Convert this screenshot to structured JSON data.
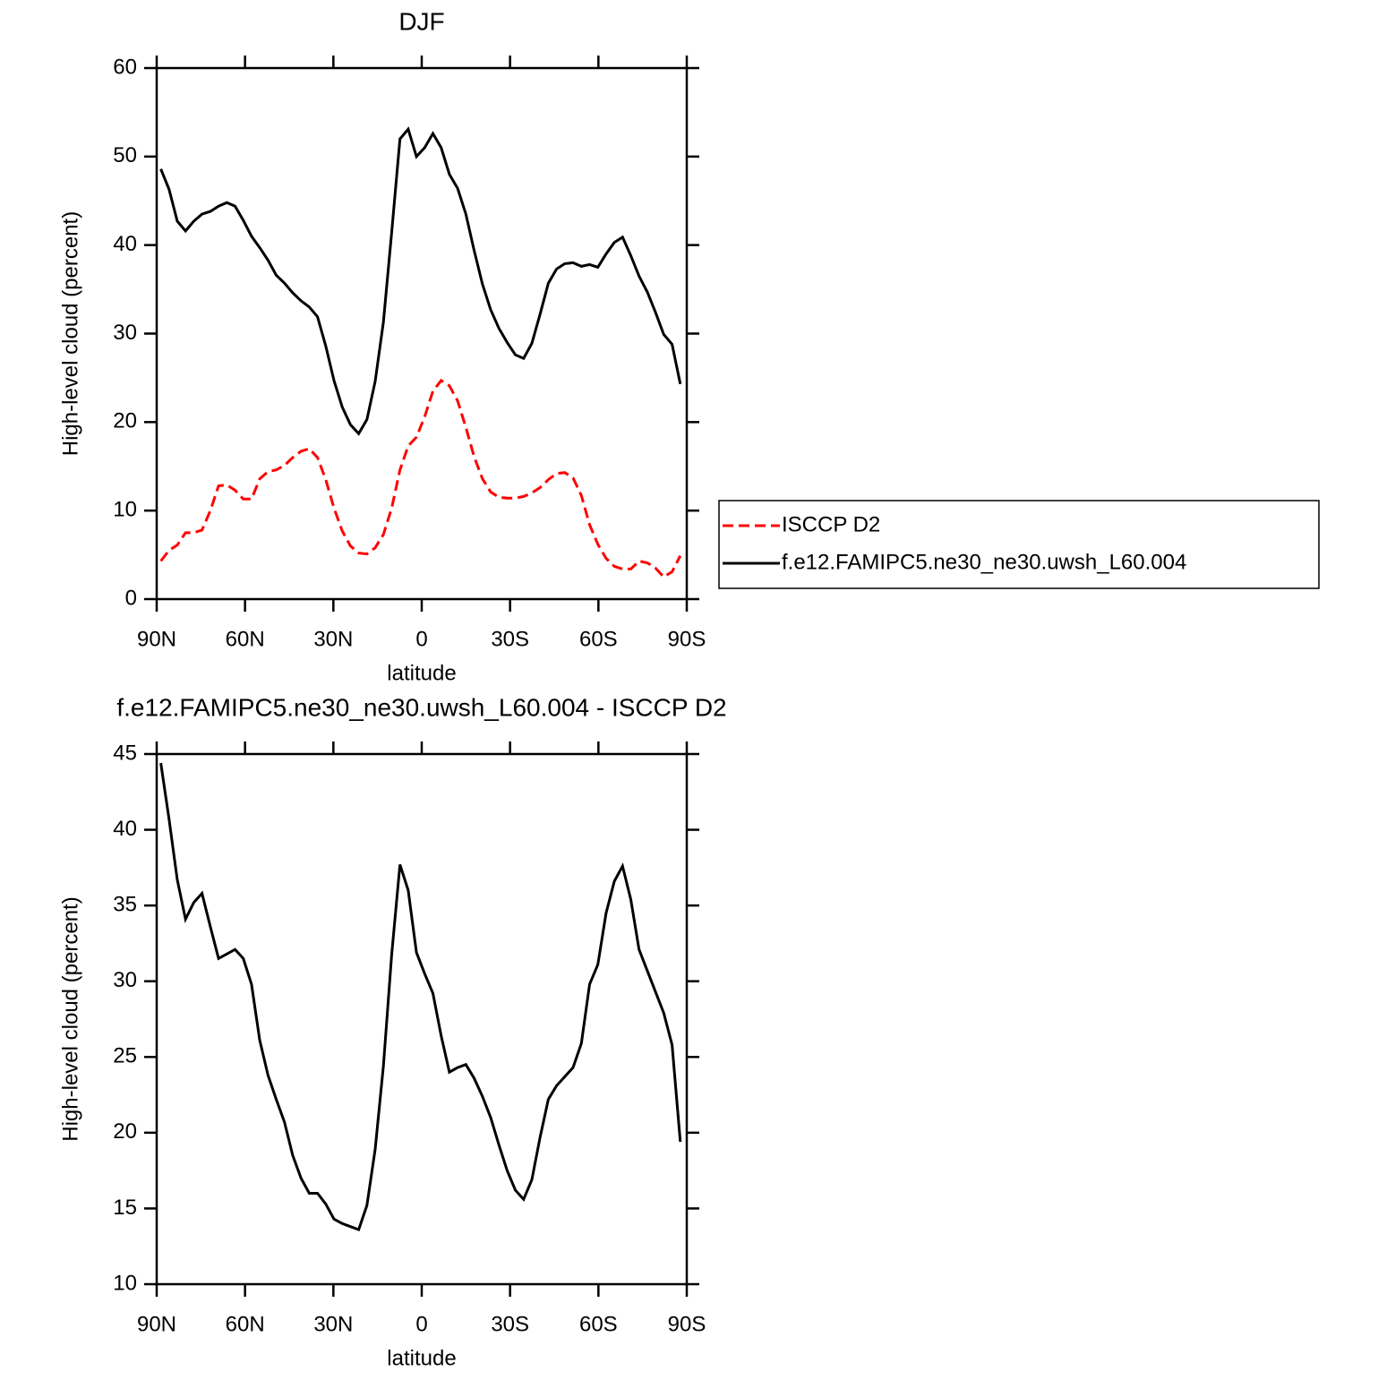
{
  "chart_data": [
    {
      "type": "line",
      "title": "DJF",
      "xlabel": "latitude",
      "ylabel": "High-level cloud (percent)",
      "xlim": [
        90,
        -90
      ],
      "ylim": [
        0,
        60
      ],
      "xticks": [
        {
          "value": 90,
          "label": "90N"
        },
        {
          "value": 60,
          "label": "60N"
        },
        {
          "value": 30,
          "label": "30N"
        },
        0,
        {
          "value": -30,
          "label": "30S"
        },
        {
          "value": -60,
          "label": "60S"
        },
        {
          "value": -90,
          "label": "90S"
        }
      ],
      "yticks": [
        0,
        10,
        20,
        30,
        40,
        50,
        60
      ],
      "legend": "right",
      "x": [
        88.6,
        85.8,
        83.0,
        80.2,
        77.4,
        74.6,
        71.8,
        69.0,
        66.2,
        63.4,
        60.6,
        57.8,
        55.0,
        52.2,
        49.4,
        46.6,
        43.8,
        41.0,
        38.2,
        35.4,
        32.6,
        29.8,
        27.0,
        24.2,
        21.4,
        18.6,
        15.8,
        13.0,
        10.2,
        7.4,
        4.6,
        1.8,
        -1.0,
        -3.8,
        -6.6,
        -9.4,
        -12.2,
        -15.0,
        -17.8,
        -20.6,
        -23.4,
        -26.2,
        -29.0,
        -31.8,
        -34.6,
        -37.4,
        -40.2,
        -43.0,
        -45.8,
        -48.6,
        -51.4,
        -54.2,
        -57.0,
        -59.8,
        -62.6,
        -65.4,
        -68.2,
        -71.0,
        -73.8,
        -76.6,
        -79.4,
        -82.2,
        -85.0,
        -87.8
      ],
      "series": [
        {
          "name": "ISCCP D2",
          "color": "#ff0000",
          "dash": "dashed",
          "values": [
            4.3,
            5.5,
            6.1,
            7.5,
            7.5,
            7.8,
            10,
            12.8,
            12.9,
            12.3,
            11.3,
            11.3,
            13.6,
            14.4,
            14.6,
            15.1,
            16,
            16.7,
            17,
            16,
            13.5,
            10.3,
            7.7,
            6.0,
            5.2,
            5.1,
            5.8,
            7.3,
            10.3,
            14.6,
            17.3,
            18.3,
            20.6,
            23.5,
            24.7,
            24.1,
            22.4,
            19.4,
            16.1,
            13.6,
            12.1,
            11.5,
            11.4,
            11.4,
            11.6,
            12,
            12.6,
            13.5,
            14.2,
            14.3,
            13.7,
            11.7,
            8.4,
            6.2,
            4.6,
            3.7,
            3.4,
            3.4,
            4.3,
            4.1,
            3.5,
            2.5,
            3.1,
            4.9
          ]
        },
        {
          "name": "f.e12.FAMIPC5.ne30_ne30.uwsh_L60.004",
          "color": "#000000",
          "dash": "solid",
          "values": [
            48.6,
            46.3,
            42.7,
            41.6,
            42.7,
            43.5,
            43.8,
            44.4,
            44.8,
            44.4,
            42.8,
            41,
            39.7,
            38.3,
            36.6,
            35.7,
            34.6,
            33.7,
            33,
            31.9,
            28.6,
            24.7,
            21.7,
            19.7,
            18.7,
            20.3,
            24.6,
            31.3,
            41.5,
            52,
            53.1,
            50,
            51,
            52.6,
            51,
            48,
            46.4,
            43.5,
            39.4,
            35.6,
            32.7,
            30.6,
            29,
            27.6,
            27.2,
            28.9,
            32.2,
            35.7,
            37.3,
            37.9,
            38,
            37.6,
            37.8,
            37.5,
            39,
            40.3,
            40.9,
            38.8,
            36.5,
            34.7,
            32.4,
            29.9,
            28.8,
            24.3
          ]
        }
      ]
    },
    {
      "type": "line",
      "title": "f.e12.FAMIPC5.ne30_ne30.uwsh_L60.004 - ISCCP D2",
      "xlabel": "latitude",
      "ylabel": "High-level cloud (percent)",
      "xlim": [
        90,
        -90
      ],
      "ylim": [
        10,
        45
      ],
      "xticks": [
        {
          "value": 90,
          "label": "90N"
        },
        {
          "value": 60,
          "label": "60N"
        },
        {
          "value": 30,
          "label": "30N"
        },
        0,
        {
          "value": -30,
          "label": "30S"
        },
        {
          "value": -60,
          "label": "60S"
        },
        {
          "value": -90,
          "label": "90S"
        }
      ],
      "yticks": [
        10,
        15,
        20,
        25,
        30,
        35,
        40,
        45
      ],
      "x": [
        88.6,
        85.8,
        83.0,
        80.2,
        77.4,
        74.6,
        71.8,
        69.0,
        66.2,
        63.4,
        60.6,
        57.8,
        55.0,
        52.2,
        49.4,
        46.6,
        43.8,
        41.0,
        38.2,
        35.4,
        32.6,
        29.8,
        27.0,
        24.2,
        21.4,
        18.6,
        15.8,
        13.0,
        10.2,
        7.4,
        4.6,
        1.8,
        -1.0,
        -3.8,
        -6.6,
        -9.4,
        -12.2,
        -15.0,
        -17.8,
        -20.6,
        -23.4,
        -26.2,
        -29.0,
        -31.8,
        -34.6,
        -37.4,
        -40.2,
        -43.0,
        -45.8,
        -48.6,
        -51.4,
        -54.2,
        -57.0,
        -59.8,
        -62.6,
        -65.4,
        -68.2,
        -71.0,
        -73.8,
        -76.6,
        -79.4,
        -82.2,
        -85.0,
        -87.8
      ],
      "series": [
        {
          "color": "#000000",
          "dash": "solid",
          "values": [
            44.4,
            40.7,
            36.7,
            34.1,
            35.2,
            35.8,
            33.6,
            31.5,
            31.8,
            32.1,
            31.5,
            29.8,
            26.1,
            23.8,
            22.2,
            20.7,
            18.5,
            17.0,
            16.0,
            16.0,
            15.3,
            14.3,
            14.0,
            13.8,
            13.6,
            15.2,
            18.9,
            24.4,
            31.8,
            37.7,
            36.0,
            31.9,
            30.5,
            29.2,
            26.4,
            24.0,
            24.3,
            24.5,
            23.6,
            22.4,
            21.0,
            19.2,
            17.5,
            16.2,
            15.6,
            16.9,
            19.7,
            22.2,
            23.1,
            23.7,
            24.3,
            25.9,
            29.8,
            31.1,
            34.5,
            36.6,
            37.6,
            35.4,
            32.1,
            30.7,
            29.3,
            27.9,
            25.8,
            19.4
          ]
        }
      ]
    }
  ]
}
